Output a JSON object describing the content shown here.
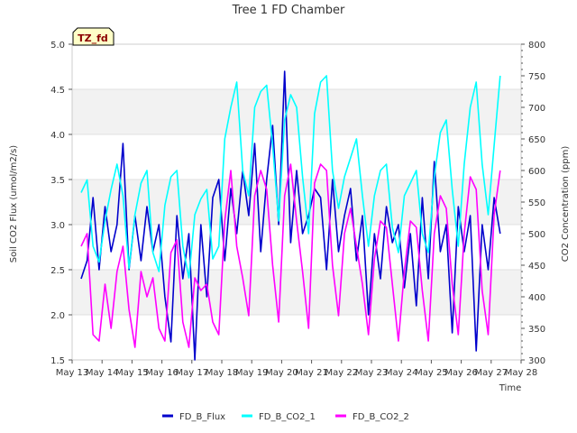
{
  "chart_data": {
    "type": "line",
    "title": "Tree 1 FD Chamber",
    "xlabel": "Time",
    "ylabel_left": "Soil CO2 Flux (umol/m2/s)",
    "ylabel_right": "CO2 Concentration (ppm)",
    "badge": "TZ_fd",
    "x_range": [
      13,
      28
    ],
    "x_ticks": [
      13,
      14,
      15,
      16,
      17,
      18,
      19,
      20,
      21,
      22,
      23,
      24,
      25,
      26,
      27,
      28
    ],
    "x_tick_labels": [
      "May 13",
      "May 14",
      "May 15",
      "May 16",
      "May 17",
      "May 18",
      "May 19",
      "May 20",
      "May 21",
      "May 22",
      "May 23",
      "May 24",
      "May 25",
      "May 26",
      "May 27",
      "May 28"
    ],
    "y_left_range": [
      1.5,
      5.0
    ],
    "y_left_ticks": [
      "1.5",
      "2.0",
      "2.5",
      "3.0",
      "3.5",
      "4.0",
      "4.5",
      "5.0"
    ],
    "y_right_range": [
      300,
      800
    ],
    "y_right_ticks": [
      "300",
      "350",
      "400",
      "450",
      "500",
      "550",
      "600",
      "650",
      "700",
      "750",
      "800"
    ],
    "grid": true,
    "legend_position": "bottom-center",
    "series": [
      {
        "name": "FD_B_Flux",
        "axis": "left",
        "color": "#0000cc",
        "x": [
          13.3,
          13.5,
          13.7,
          13.9,
          14.1,
          14.3,
          14.5,
          14.7,
          14.9,
          15.1,
          15.3,
          15.5,
          15.7,
          15.9,
          16.1,
          16.3,
          16.5,
          16.7,
          16.9,
          17.1,
          17.3,
          17.5,
          17.7,
          17.9,
          18.1,
          18.3,
          18.5,
          18.7,
          18.9,
          19.1,
          19.3,
          19.5,
          19.7,
          19.9,
          20.1,
          20.3,
          20.5,
          20.7,
          20.9,
          21.1,
          21.3,
          21.5,
          21.7,
          21.9,
          22.1,
          22.3,
          22.5,
          22.7,
          22.9,
          23.1,
          23.3,
          23.5,
          23.7,
          23.9,
          24.1,
          24.3,
          24.5,
          24.7,
          24.9,
          25.1,
          25.3,
          25.5,
          25.7,
          25.9,
          26.1,
          26.3,
          26.5,
          26.7,
          26.9,
          27.1,
          27.3
        ],
        "values": [
          2.4,
          2.6,
          3.3,
          2.5,
          3.2,
          2.7,
          3.0,
          3.9,
          2.5,
          3.1,
          2.6,
          3.2,
          2.7,
          3.0,
          2.2,
          1.7,
          3.1,
          2.4,
          2.9,
          1.5,
          3.0,
          2.2,
          3.3,
          3.5,
          2.6,
          3.4,
          2.9,
          3.6,
          3.1,
          3.9,
          2.7,
          3.5,
          4.1,
          3.0,
          4.7,
          2.8,
          3.6,
          2.9,
          3.1,
          3.4,
          3.3,
          2.5,
          3.5,
          2.7,
          3.1,
          3.4,
          2.6,
          3.1,
          2.0,
          2.9,
          2.4,
          3.2,
          2.8,
          3.0,
          2.3,
          2.9,
          2.1,
          3.3,
          2.4,
          3.7,
          2.7,
          3.0,
          1.8,
          3.2,
          2.7,
          3.1,
          1.6,
          3.0,
          2.5,
          3.3,
          2.9
        ]
      },
      {
        "name": "FD_B_CO2_1",
        "axis": "right",
        "color": "#00ffff",
        "x": [
          13.3,
          13.5,
          13.7,
          13.9,
          14.1,
          14.3,
          14.5,
          14.7,
          14.9,
          15.1,
          15.3,
          15.5,
          15.7,
          15.9,
          16.1,
          16.3,
          16.5,
          16.7,
          16.9,
          17.1,
          17.3,
          17.5,
          17.7,
          17.9,
          18.1,
          18.3,
          18.5,
          18.7,
          18.9,
          19.1,
          19.3,
          19.5,
          19.7,
          19.9,
          20.1,
          20.3,
          20.5,
          20.7,
          20.9,
          21.1,
          21.3,
          21.5,
          21.7,
          21.9,
          22.1,
          22.3,
          22.5,
          22.7,
          22.9,
          23.1,
          23.3,
          23.5,
          23.7,
          23.9,
          24.1,
          24.3,
          24.5,
          24.7,
          24.9,
          25.1,
          25.3,
          25.5,
          25.7,
          25.9,
          26.1,
          26.3,
          26.5,
          26.7,
          26.9,
          27.1,
          27.3
        ],
        "values": [
          565,
          585,
          480,
          455,
          520,
          570,
          610,
          560,
          445,
          530,
          580,
          600,
          470,
          440,
          545,
          590,
          600,
          480,
          430,
          530,
          555,
          570,
          460,
          480,
          650,
          700,
          740,
          600,
          560,
          700,
          725,
          735,
          640,
          520,
          680,
          720,
          700,
          590,
          500,
          690,
          740,
          750,
          600,
          540,
          590,
          620,
          650,
          560,
          480,
          560,
          600,
          610,
          510,
          470,
          560,
          580,
          600,
          500,
          470,
          590,
          660,
          680,
          570,
          480,
          610,
          700,
          740,
          610,
          530,
          640,
          750
        ]
      },
      {
        "name": "FD_B_CO2_2",
        "axis": "right",
        "color": "#ff00ff",
        "x": [
          13.3,
          13.5,
          13.7,
          13.9,
          14.1,
          14.3,
          14.5,
          14.7,
          14.9,
          15.1,
          15.3,
          15.5,
          15.7,
          15.9,
          16.1,
          16.3,
          16.5,
          16.7,
          16.9,
          17.1,
          17.3,
          17.5,
          17.7,
          17.9,
          18.1,
          18.3,
          18.5,
          18.7,
          18.9,
          19.1,
          19.3,
          19.5,
          19.7,
          19.9,
          20.1,
          20.3,
          20.5,
          20.7,
          20.9,
          21.1,
          21.3,
          21.5,
          21.7,
          21.9,
          22.1,
          22.3,
          22.5,
          22.7,
          22.9,
          23.1,
          23.3,
          23.5,
          23.7,
          23.9,
          24.1,
          24.3,
          24.5,
          24.7,
          24.9,
          25.1,
          25.3,
          25.5,
          25.7,
          25.9,
          26.1,
          26.3,
          26.5,
          26.7,
          26.9,
          27.1,
          27.3
        ],
        "values": [
          480,
          500,
          340,
          330,
          420,
          350,
          440,
          480,
          380,
          320,
          440,
          400,
          430,
          350,
          330,
          470,
          490,
          360,
          320,
          430,
          410,
          420,
          360,
          340,
          520,
          600,
          480,
          430,
          370,
          560,
          600,
          570,
          450,
          360,
          560,
          610,
          520,
          440,
          350,
          580,
          610,
          600,
          450,
          370,
          500,
          540,
          480,
          420,
          340,
          460,
          520,
          510,
          420,
          330,
          440,
          520,
          510,
          410,
          330,
          500,
          560,
          540,
          420,
          340,
          500,
          590,
          570,
          410,
          340,
          530,
          600
        ]
      }
    ]
  }
}
